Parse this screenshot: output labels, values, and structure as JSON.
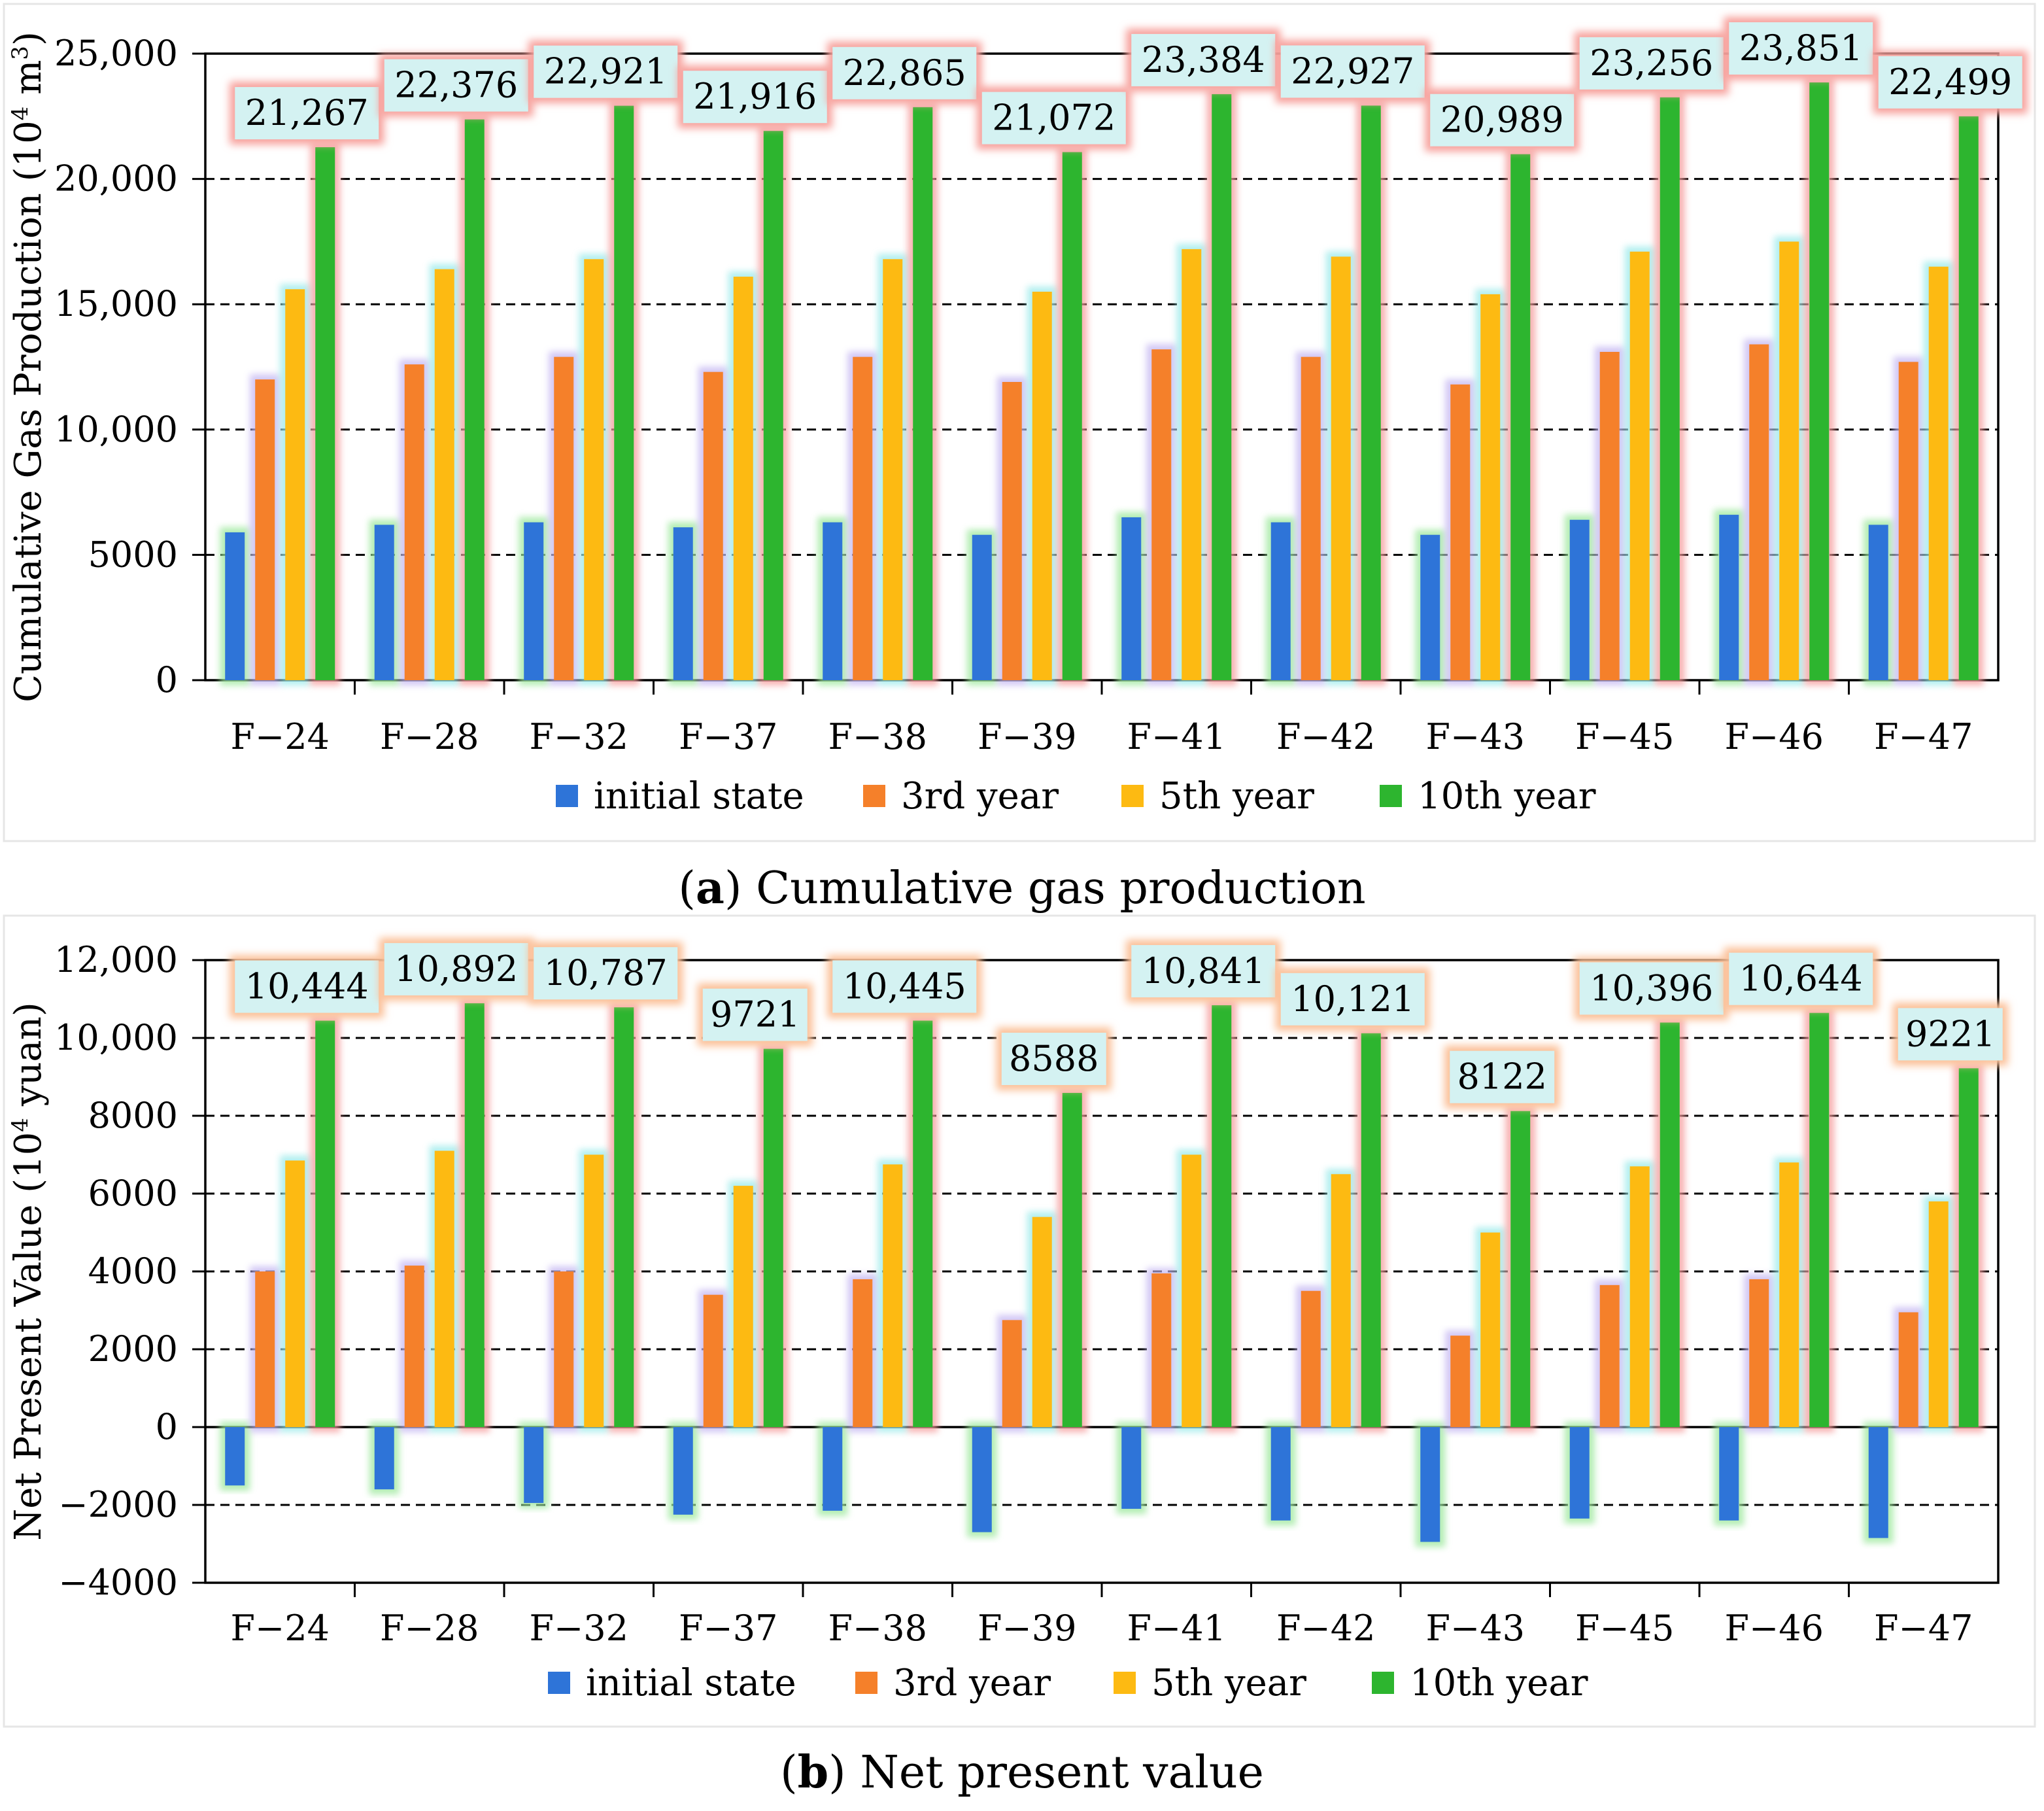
{
  "colors": {
    "initial": "#2E74D8",
    "year3": "#F5802A",
    "year5": "#FDBA12",
    "year10": "#2DB52F",
    "label_bg": "#D4F2F2",
    "label_glow": "#F7A19C",
    "label_glow_npv": "#FBC097"
  },
  "legend": [
    "initial state",
    "3rd year",
    "5th year",
    "10th year"
  ],
  "chart_data": [
    {
      "type": "bar",
      "ylabel_main": "Cumulative Gas Production (10",
      "ylabel_sup": "4",
      "ylabel_tail": " m",
      "ylabel_sup2": "3",
      "ylabel_end": ")",
      "ylim": [
        0,
        25000
      ],
      "yticks": [
        0,
        5000,
        10000,
        15000,
        20000,
        25000
      ],
      "ytick_labels": [
        "0",
        "5000",
        "10,000",
        "15,000",
        "20,000",
        "25,000"
      ],
      "grid": "dashed horizontal",
      "legend_position": "bottom",
      "categories": [
        "F−24",
        "F−28",
        "F−32",
        "F−37",
        "F−38",
        "F−39",
        "F−41",
        "F−42",
        "F−43",
        "F−45",
        "F−46",
        "F−47"
      ],
      "series": [
        {
          "name": "initial state",
          "values": [
            5900,
            6200,
            6300,
            6100,
            6300,
            5800,
            6500,
            6300,
            5800,
            6400,
            6600,
            6200
          ]
        },
        {
          "name": "3rd year",
          "values": [
            12000,
            12600,
            12900,
            12300,
            12900,
            11900,
            13200,
            12900,
            11800,
            13100,
            13400,
            12700
          ]
        },
        {
          "name": "5th year",
          "values": [
            15600,
            16400,
            16800,
            16100,
            16800,
            15500,
            17200,
            16900,
            15400,
            17100,
            17500,
            16500
          ]
        },
        {
          "name": "10th year",
          "values": [
            21267,
            22376,
            22921,
            21916,
            22865,
            21072,
            23384,
            22927,
            20989,
            23256,
            23851,
            22499
          ]
        }
      ],
      "data_labels": [
        "21,267",
        "22,376",
        "22,921",
        "21,916",
        "22,865",
        "21,072",
        "23,384",
        "22,927",
        "20,989",
        "23,256",
        "23,851",
        "22,499"
      ],
      "caption_letter": "a",
      "caption_text": "Cumulative gas production"
    },
    {
      "type": "bar",
      "ylabel_main": "Net Present Value (10",
      "ylabel_sup": "4",
      "ylabel_tail": "  yuan",
      "ylabel_sup2": "",
      "ylabel_end": ")",
      "ylim": [
        -4000,
        12000
      ],
      "yticks": [
        -4000,
        -2000,
        0,
        2000,
        4000,
        6000,
        8000,
        10000,
        12000
      ],
      "ytick_labels": [
        "−4000",
        "−2000",
        "0",
        "2000",
        "4000",
        "6000",
        "8000",
        "10,000",
        "12,000"
      ],
      "grid": "dashed horizontal",
      "legend_position": "bottom",
      "categories": [
        "F−24",
        "F−28",
        "F−32",
        "F−37",
        "F−38",
        "F−39",
        "F−41",
        "F−42",
        "F−43",
        "F−45",
        "F−46",
        "F−47"
      ],
      "series": [
        {
          "name": "initial state",
          "values": [
            -1500,
            -1600,
            -1950,
            -2250,
            -2150,
            -2700,
            -2100,
            -2400,
            -2950,
            -2350,
            -2400,
            -2850
          ]
        },
        {
          "name": "3rd year",
          "values": [
            4000,
            4150,
            4000,
            3400,
            3800,
            2750,
            3950,
            3500,
            2350,
            3650,
            3800,
            2950
          ]
        },
        {
          "name": "5th year",
          "values": [
            6850,
            7100,
            7000,
            6200,
            6750,
            5400,
            7000,
            6500,
            5000,
            6700,
            6800,
            5800
          ]
        },
        {
          "name": "10th year",
          "values": [
            10444,
            10892,
            10787,
            9721,
            10445,
            8588,
            10841,
            10121,
            8122,
            10396,
            10644,
            9221
          ]
        }
      ],
      "data_labels": [
        "10,444",
        "10,892",
        "10,787",
        "9721",
        "10,445",
        "8588",
        "10,841",
        "10,121",
        "8122",
        "10,396",
        "10,644",
        "9221"
      ],
      "caption_letter": "b",
      "caption_text": "Net present value"
    }
  ]
}
